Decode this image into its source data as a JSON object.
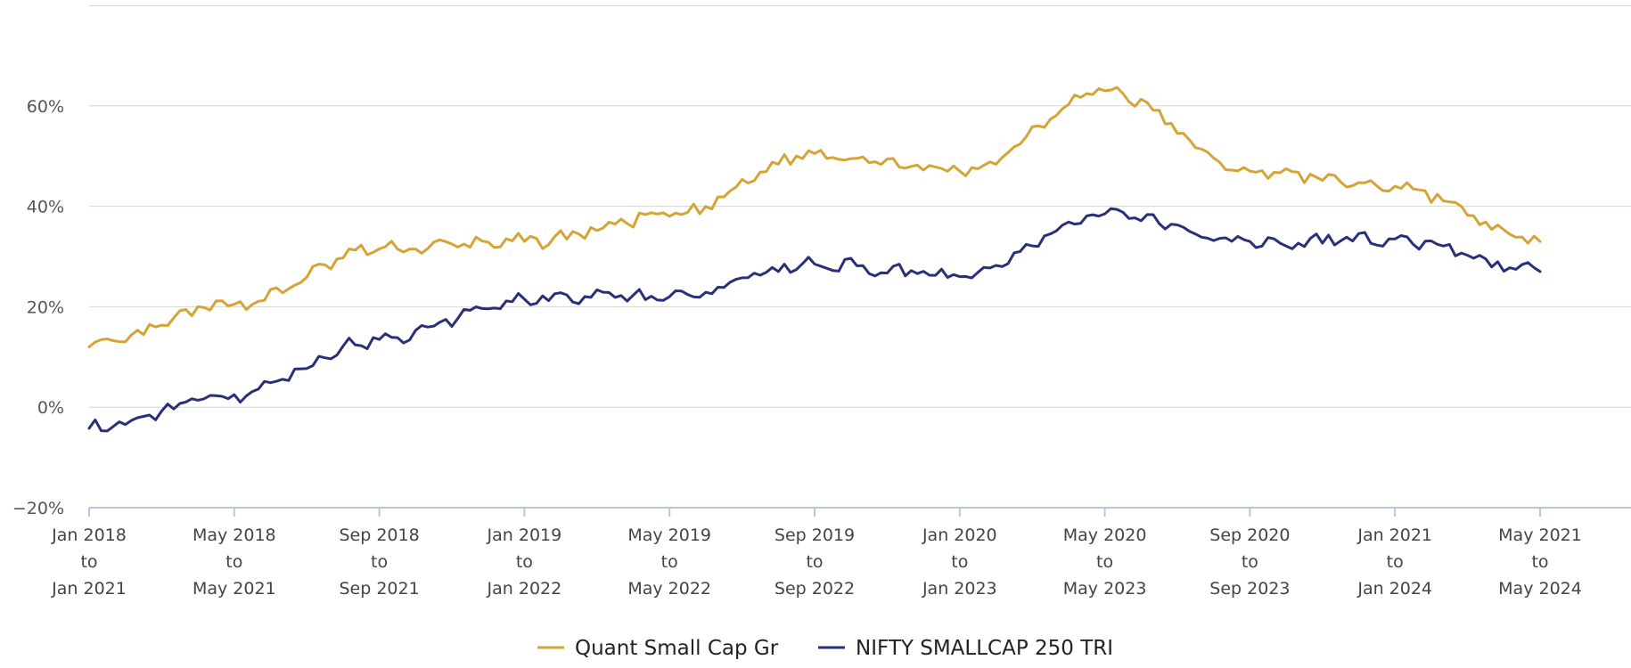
{
  "chart_data": {
    "type": "line",
    "x": [
      "Jan 2018 to Jan 2021",
      "May 2018 to May 2021",
      "Sep 2018 to Sep 2021",
      "Jan 2019 to Jan 2022",
      "May 2019 to May 2022",
      "Sep 2019 to Sep 2022",
      "Jan 2020 to Jan 2023",
      "May 2020 to May 2023",
      "Sep 2020 to Sep 2023",
      "Jan 2021 to Jan 2024",
      "May 2021 to May 2024"
    ],
    "x_tick_labels": [
      [
        "Jan 2018",
        "to",
        "Jan 2021"
      ],
      [
        "May 2018",
        "to",
        "May 2021"
      ],
      [
        "Sep 2018",
        "to",
        "Sep 2021"
      ],
      [
        "Jan 2019",
        "to",
        "Jan 2022"
      ],
      [
        "May 2019",
        "to",
        "May 2022"
      ],
      [
        "Sep 2019",
        "to",
        "Sep 2022"
      ],
      [
        "Jan 2020",
        "to",
        "Jan 2023"
      ],
      [
        "May 2020",
        "to",
        "May 2023"
      ],
      [
        "Sep 2020",
        "to",
        "Sep 2023"
      ],
      [
        "Jan 2021",
        "to",
        "Jan 2024"
      ],
      [
        "May 2021",
        "to",
        "May 2024"
      ]
    ],
    "y_ticks": [
      -20,
      0,
      20,
      40,
      60
    ],
    "y_tick_labels": [
      "−20%",
      "0%",
      "20%",
      "40%",
      "60%"
    ],
    "ylim": [
      -20,
      80
    ],
    "grid": true,
    "legend_position": "bottom-center",
    "series": [
      {
        "name": "Quant Small Cap Gr",
        "color": "#d4a435",
        "values": [
          12,
          20.5,
          31.5,
          33,
          38,
          50.5,
          47,
          63,
          47,
          44,
          33
        ]
      },
      {
        "name": "NIFTY SMALLCAP 250 TRI",
        "color": "#2a2f7a",
        "values": [
          -4.2,
          2.5,
          13.5,
          21.5,
          22,
          28.5,
          26,
          38.5,
          33,
          33.5,
          27
        ]
      }
    ]
  }
}
